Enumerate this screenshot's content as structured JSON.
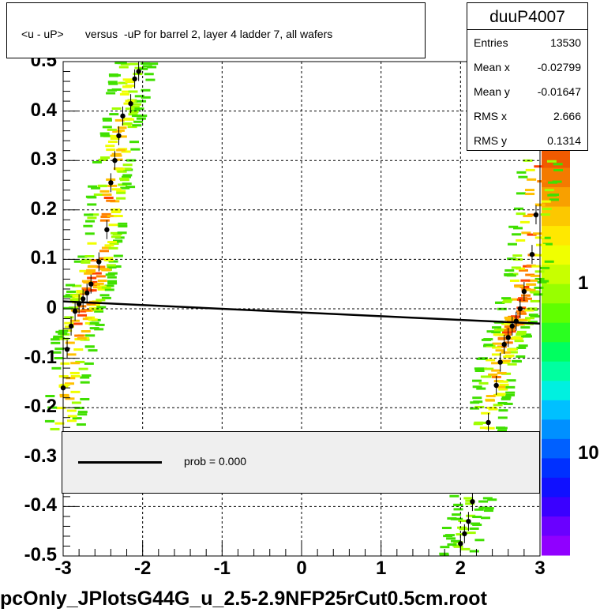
{
  "chart_data": {
    "type": "scatter",
    "title": "<u - uP>       versus  -uP for barrel 2, layer 4 ladder 7, all wafers",
    "xlabel": "",
    "ylabel": "",
    "xlim": [
      -3,
      3
    ],
    "ylim": [
      -0.5,
      0.5
    ],
    "x_ticks": [
      "-3",
      "-2",
      "-1",
      "0",
      "1",
      "2",
      "3"
    ],
    "y_ticks": [
      "-0.5",
      "-0.4",
      "-0.3",
      "-0.2",
      "-0.1",
      "0",
      "0.1",
      "0.2",
      "0.3",
      "0.4",
      "0.5"
    ],
    "z_ticks": [
      "1",
      "10"
    ],
    "z_scale": "log",
    "grid": true,
    "stats": {
      "name": "duuP4007",
      "rows": [
        {
          "key": "Entries",
          "value": "13530"
        },
        {
          "key": "Mean x",
          "value": "-0.02799"
        },
        {
          "key": "Mean y",
          "value": "-0.01647"
        },
        {
          "key": "RMS x",
          "value": "2.666"
        },
        {
          "key": "RMS y",
          "value": "0.1314"
        }
      ]
    },
    "legend": {
      "text": "prob = 0.000"
    },
    "fit_line": {
      "x": [
        -3,
        3
      ],
      "y": [
        0.015,
        -0.03
      ]
    },
    "profile_points": [
      {
        "x": -3.0,
        "y": -0.16
      },
      {
        "x": -2.95,
        "y": -0.082
      },
      {
        "x": -2.9,
        "y": -0.035
      },
      {
        "x": -2.85,
        "y": -0.005
      },
      {
        "x": -2.8,
        "y": 0.01
      },
      {
        "x": -2.75,
        "y": 0.02
      },
      {
        "x": -2.7,
        "y": 0.032
      },
      {
        "x": -2.65,
        "y": 0.05
      },
      {
        "x": -2.55,
        "y": 0.095
      },
      {
        "x": -2.45,
        "y": 0.16
      },
      {
        "x": -2.4,
        "y": 0.255
      },
      {
        "x": -2.35,
        "y": 0.3
      },
      {
        "x": -2.3,
        "y": 0.35
      },
      {
        "x": -2.25,
        "y": 0.39
      },
      {
        "x": -2.15,
        "y": 0.415
      },
      {
        "x": -2.1,
        "y": 0.465
      },
      {
        "x": -2.05,
        "y": 0.48
      },
      {
        "x": 2.0,
        "y": -0.475
      },
      {
        "x": 2.05,
        "y": -0.455
      },
      {
        "x": 2.1,
        "y": -0.43
      },
      {
        "x": 2.15,
        "y": -0.39
      },
      {
        "x": 2.35,
        "y": -0.23
      },
      {
        "x": 2.45,
        "y": -0.155
      },
      {
        "x": 2.5,
        "y": -0.108
      },
      {
        "x": 2.55,
        "y": -0.072
      },
      {
        "x": 2.6,
        "y": -0.058
      },
      {
        "x": 2.65,
        "y": -0.035
      },
      {
        "x": 2.7,
        "y": -0.025
      },
      {
        "x": 2.75,
        "y": 0.0
      },
      {
        "x": 2.8,
        "y": 0.035
      },
      {
        "x": 2.9,
        "y": 0.11
      },
      {
        "x": 2.95,
        "y": 0.19
      }
    ]
  },
  "footer": {
    "filename": "pcOnly_JPlotsG44G_u_2.5-2.9NFP25rCut0.5cm.root"
  }
}
